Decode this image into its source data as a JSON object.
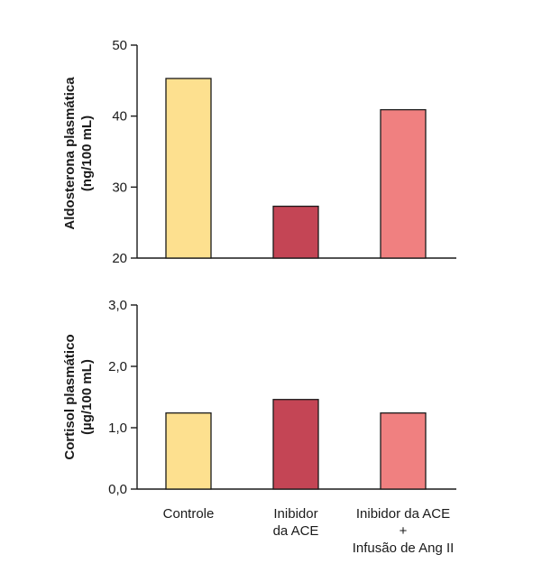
{
  "chart_data": [
    {
      "type": "bar",
      "categories": [
        "Controle",
        "Inibidor da ACE",
        "Inibidor da ACE + Infusão de Ang II"
      ],
      "values": [
        45.3,
        27.3,
        40.9
      ],
      "ylabel": [
        "Aldosterona plasmática",
        "(ng/100 mL)"
      ],
      "ylim": [
        20,
        50
      ],
      "yticks": [
        "20",
        "30",
        "40",
        "50"
      ],
      "ytick_values": [
        20,
        30,
        40,
        50
      ],
      "colors": [
        "#fde08f",
        "#c44555",
        "#f08080"
      ],
      "grid": false
    },
    {
      "type": "bar",
      "categories": [
        "Controle",
        "Inibidor da ACE",
        "Inibidor da ACE + Infusão de Ang II"
      ],
      "values": [
        1.24,
        1.46,
        1.24
      ],
      "ylabel": [
        "Cortisol plasmático",
        "(µg/100 mL)"
      ],
      "ylim": [
        0,
        3
      ],
      "yticks": [
        "0,0",
        "1,0",
        "2,0",
        "3,0"
      ],
      "ytick_values": [
        0,
        1,
        2,
        3
      ],
      "colors": [
        "#fde08f",
        "#c44555",
        "#f08080"
      ],
      "grid": false
    }
  ],
  "x_labels": [
    [
      "Controle"
    ],
    [
      "Inibidor",
      "da ACE"
    ],
    [
      "Inibidor da ACE",
      "+",
      "Infusão de Ang II"
    ]
  ]
}
